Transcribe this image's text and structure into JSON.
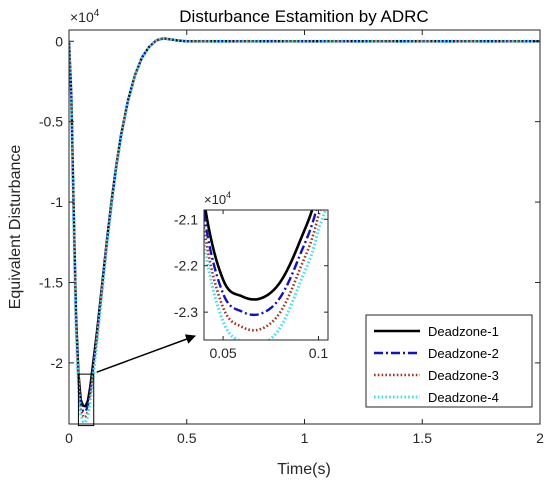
{
  "chart_data": {
    "type": "line",
    "title": "Disturbance Estamition by ADRC",
    "xlabel": "Time(s)",
    "ylabel": "Equivalent Disturbance",
    "y_exponent": "×10",
    "y_exponent_power": "4",
    "xlim": [
      0,
      2
    ],
    "ylim": [
      -23800,
      700
    ],
    "xticks": [
      0,
      0.5,
      1,
      1.5,
      2
    ],
    "xtick_labels": [
      "0",
      "0.5",
      "1",
      "1.5",
      "2"
    ],
    "yticks": [
      0,
      -5000,
      -10000,
      -15000,
      -20000
    ],
    "ytick_labels": [
      "0",
      "-0.5",
      "-1",
      "-1.5",
      "-2"
    ],
    "grid": false,
    "legend_position": "bottom-right",
    "x": [
      0,
      0.01,
      0.02,
      0.03,
      0.04,
      0.05,
      0.06,
      0.07,
      0.08,
      0.09,
      0.1,
      0.12,
      0.14,
      0.16,
      0.18,
      0.2,
      0.22,
      0.25,
      0.28,
      0.31,
      0.34,
      0.37,
      0.4,
      0.43,
      0.46,
      0.5,
      0.6,
      0.8,
      1.0,
      1.5,
      2.0
    ],
    "series": [
      {
        "name": "Deadzone-1",
        "color": "#000000",
        "style": "solid",
        "values": [
          0,
          -3400,
          -10500,
          -17000,
          -20600,
          -22300,
          -22660,
          -22700,
          -22350,
          -21500,
          -20300,
          -17900,
          -15200,
          -12500,
          -10000,
          -7800,
          -5900,
          -3700,
          -2100,
          -1000,
          -350,
          50,
          180,
          120,
          50,
          0,
          0,
          0,
          0,
          0,
          0
        ]
      },
      {
        "name": "Deadzone-2",
        "color": "#1010c8",
        "style": "dashdot",
        "values": [
          0,
          -3500,
          -10700,
          -17300,
          -20900,
          -22600,
          -22990,
          -23030,
          -22680,
          -21800,
          -20600,
          -18100,
          -15350,
          -12600,
          -10100,
          -7850,
          -5950,
          -3720,
          -2110,
          -1010,
          -355,
          50,
          180,
          120,
          50,
          0,
          0,
          0,
          0,
          0,
          0
        ]
      },
      {
        "name": "Deadzone-3",
        "color": "#a0341c",
        "style": "dotted",
        "values": [
          0,
          -3600,
          -10900,
          -17600,
          -21200,
          -22900,
          -23320,
          -23360,
          -23000,
          -22100,
          -20900,
          -18300,
          -15500,
          -12700,
          -10200,
          -7900,
          -6000,
          -3740,
          -2120,
          -1020,
          -360,
          50,
          180,
          120,
          50,
          0,
          0,
          0,
          0,
          0,
          0
        ]
      },
      {
        "name": "Deadzone-4",
        "color": "#40e0f0",
        "style": "dotted",
        "values": [
          0,
          -3700,
          -11100,
          -17900,
          -21500,
          -23200,
          -23650,
          -23700,
          -23330,
          -22400,
          -21200,
          -18500,
          -15650,
          -12800,
          -10300,
          -7950,
          -6050,
          -3760,
          -2130,
          -1030,
          -365,
          50,
          180,
          120,
          50,
          0,
          0,
          0,
          0,
          0,
          0
        ]
      }
    ],
    "inset": {
      "xlim": [
        0.04,
        0.105
      ],
      "ylim": [
        -23600,
        -20800
      ],
      "xticks": [
        0.05,
        0.1
      ],
      "xtick_labels": [
        "0.05",
        "0.1"
      ],
      "yticks": [
        -21000,
        -22000,
        -23000
      ],
      "ytick_labels": [
        "-2.1",
        "-2.2",
        "-2.3"
      ],
      "y_exponent": "×10",
      "y_exponent_power": "4",
      "zoom_box_xlim": [
        0.04,
        0.105
      ],
      "zoom_box_ylim": [
        -23900,
        -20700
      ]
    }
  }
}
